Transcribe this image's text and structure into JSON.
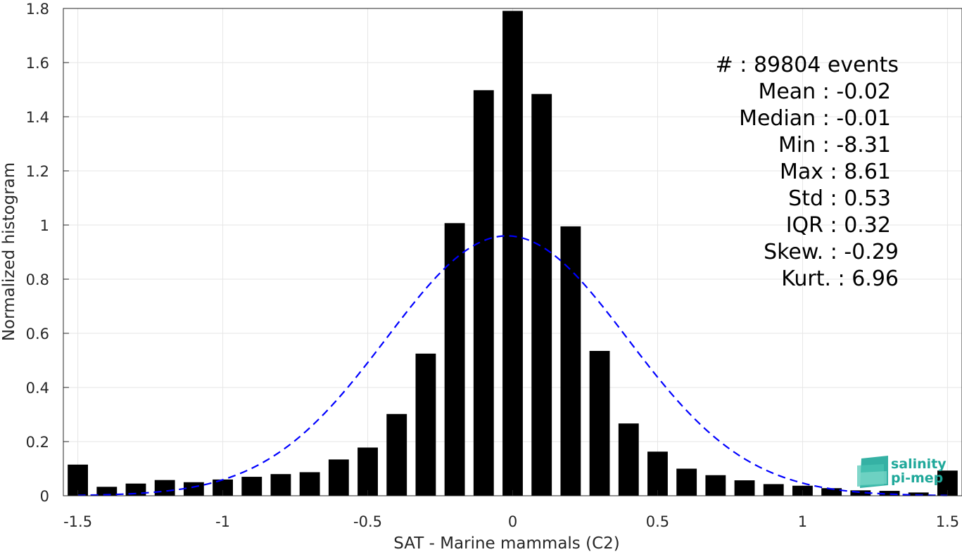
{
  "chart_data": {
    "type": "bar",
    "xlabel": "SAT - Marine mammals (C2)",
    "ylabel": "Normalized histogram",
    "xlim": [
      -1.55,
      1.55
    ],
    "ylim": [
      0,
      1.8
    ],
    "xticks": [
      -1.5,
      -1,
      -0.5,
      0,
      0.5,
      1,
      1.5
    ],
    "xtick_labels": [
      "-1.5",
      "-1",
      "-0.5",
      "0",
      "0.5",
      "1",
      "1.5"
    ],
    "yticks": [
      0,
      0.2,
      0.4,
      0.6,
      0.8,
      1,
      1.2,
      1.4,
      1.6,
      1.8
    ],
    "ytick_labels": [
      "0",
      "0.2",
      "0.4",
      "0.6",
      "0.8",
      "1",
      "1.2",
      "1.4",
      "1.6",
      "1.8"
    ],
    "grid": true,
    "bin_width": 0.1,
    "bar_color": "#000000",
    "x": [
      -1.5,
      -1.4,
      -1.3,
      -1.2,
      -1.1,
      -1.0,
      -0.9,
      -0.8,
      -0.7,
      -0.6,
      -0.5,
      -0.4,
      -0.3,
      -0.2,
      -0.1,
      0.0,
      0.1,
      0.2,
      0.3,
      0.4,
      0.5,
      0.6,
      0.7,
      0.8,
      0.9,
      1.0,
      1.1,
      1.2,
      1.3,
      1.4,
      1.5
    ],
    "values": [
      0.115,
      0.033,
      0.045,
      0.058,
      0.05,
      0.06,
      0.07,
      0.08,
      0.087,
      0.134,
      0.178,
      0.302,
      0.525,
      1.007,
      1.498,
      1.791,
      1.484,
      0.995,
      0.535,
      0.267,
      0.163,
      0.1,
      0.076,
      0.057,
      0.043,
      0.037,
      0.028,
      0.02,
      0.018,
      0.012,
      0.093
    ],
    "fit": {
      "type": "normal",
      "mean": -0.02,
      "std": 0.415,
      "peak": 0.96,
      "color": "#0000ff",
      "style": "dashed"
    },
    "stats": [
      {
        "label": "#  : 89804 events"
      },
      {
        "label": "Mean : -0.02"
      },
      {
        "label": "Median : -0.01"
      },
      {
        "label": "Min : -8.31"
      },
      {
        "label": "Max : 8.61"
      },
      {
        "label": "Std : 0.53"
      },
      {
        "label": "IQR : 0.32"
      },
      {
        "label": "Skew. : -0.29"
      },
      {
        "label": "Kurt. : 6.96"
      }
    ]
  },
  "logo": {
    "line1": "salinity",
    "line2": "pi-mep",
    "color": "#1fa89a"
  }
}
